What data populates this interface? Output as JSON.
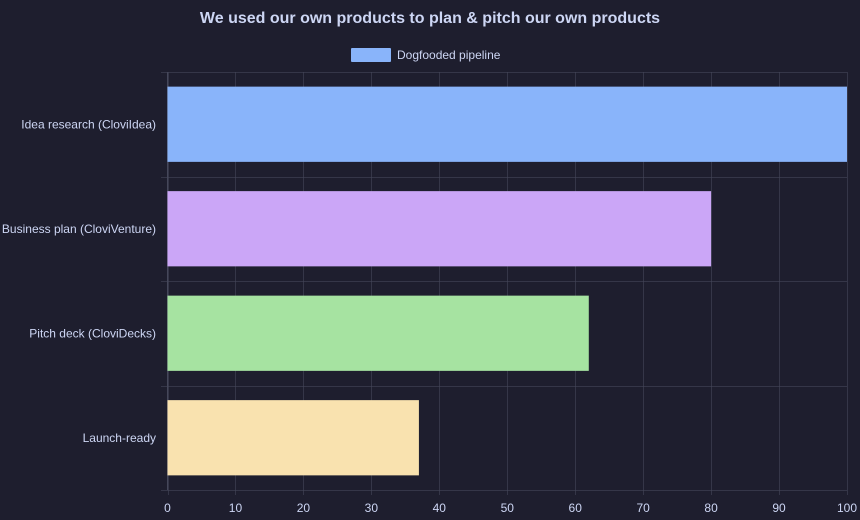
{
  "chart_data": {
    "type": "bar",
    "orientation": "horizontal",
    "title": "We used our own products to plan & pitch our own products",
    "legend": {
      "placement": "top-center",
      "entries": [
        {
          "label": "Dogfooded pipeline",
          "color": "#89b4fa"
        }
      ]
    },
    "categories": [
      "Idea research (CloviIdea)",
      "Business plan (CloviVenture)",
      "Pitch deck (CloviDecks)",
      "Launch-ready"
    ],
    "series": [
      {
        "name": "Dogfooded pipeline",
        "values": [
          100,
          80,
          62,
          37
        ],
        "colors": [
          "#89b4fa",
          "#cba6f7",
          "#a6e3a1",
          "#f9e2af"
        ]
      }
    ],
    "xlim": [
      0,
      100
    ],
    "xticks": [
      0,
      10,
      20,
      30,
      40,
      50,
      60,
      70,
      80,
      90,
      100
    ],
    "grid": true,
    "xlabel": "",
    "ylabel": "",
    "colors": {
      "background": "#1e1e2e",
      "text": "#cdd6f4",
      "grid": "#45475a"
    }
  }
}
